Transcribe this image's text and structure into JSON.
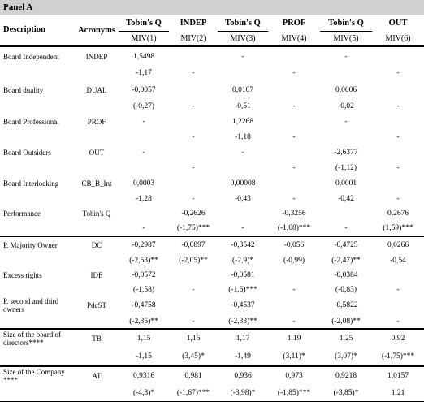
{
  "panel_title": "Panel A",
  "header": {
    "description": "Description",
    "acronyms": "Acronyms",
    "dep_vars": [
      "Tobin's Q",
      "INDEP",
      "Tobin's Q",
      "PROF",
      "Tobin's Q",
      "OUT"
    ],
    "models": [
      "MIV(1)",
      "MIV(2)",
      "MIV(3)",
      "MIV(4)",
      "MIV(5)",
      "MIV(6)"
    ]
  },
  "rows": [
    {
      "label": "Board Independent",
      "acr": "INDEP",
      "coef": [
        "1,5498",
        "",
        "-",
        "",
        "-",
        ""
      ],
      "stat": [
        "-1,17",
        "-",
        "",
        "-",
        "",
        "-"
      ]
    },
    {
      "label": "Board duality",
      "acr": "DUAL",
      "coef": [
        "-0,0057",
        "",
        "0,0107",
        "",
        "0,0006",
        ""
      ],
      "stat": [
        "(-0,27)",
        "-",
        "-0,51",
        "-",
        "-0,02",
        "-"
      ]
    },
    {
      "label": "Board Professional",
      "acr": "PROF",
      "coef": [
        "-",
        "",
        "1,2268",
        "",
        "-",
        ""
      ],
      "stat": [
        "",
        "-",
        "-1,18",
        "-",
        "",
        "-"
      ]
    },
    {
      "label": "Board Outsiders",
      "acr": "OUT",
      "coef": [
        "-",
        "",
        "-",
        "",
        "-2,6377",
        ""
      ],
      "stat": [
        "",
        "-",
        "",
        "-",
        "(-1,12)",
        "-"
      ]
    },
    {
      "label": "Board Interlocking",
      "acr": "CB_B_Int",
      "coef": [
        "0,0003",
        "",
        "0,00008",
        "",
        "0,0001",
        ""
      ],
      "stat": [
        "-1,28",
        "-",
        "-0,43",
        "-",
        "-0,42",
        "-"
      ]
    },
    {
      "label": "Performance",
      "acr": "Tobin's Q",
      "coef": [
        "",
        "-0,2626",
        "",
        "-0,3256",
        "",
        "0,2676"
      ],
      "stat": [
        "-",
        "(-1,75)***",
        "-",
        "(-1,68)***",
        "-",
        "(1,59)***"
      ]
    },
    {
      "label": "P. Majority Owner",
      "acr": "DC",
      "coef": [
        "-0,2987",
        "-0,0897",
        "-0,3542",
        "-0,056",
        "-0,4725",
        "0,0266"
      ],
      "stat": [
        "(-2,53)**",
        "(-2,05)**",
        "(-2,9)*",
        "(-0,99)",
        "(-2,47)**",
        "-0,54"
      ]
    },
    {
      "label": "Excess rights",
      "acr": "IDE",
      "coef": [
        "-0,0572",
        "",
        "-0,0581",
        "",
        "-0,0384",
        ""
      ],
      "stat": [
        "(-1,58)",
        "-",
        "(-1,6)***",
        "-",
        "(-0,83)",
        "-"
      ]
    },
    {
      "label": "P. second and third owners",
      "acr": "PdcST",
      "coef": [
        "-0,4758",
        "",
        "-0,4537",
        "",
        "-0,5822",
        ""
      ],
      "stat": [
        "(-2,35)**",
        "-",
        "(-2,33)**",
        "-",
        "(-2,08)**",
        "-"
      ]
    },
    {
      "label": "Size of the board of directors****",
      "acr": "TB",
      "coef": [
        "1,15",
        "1,16",
        "1,17",
        "1,19",
        "1,25",
        "0,92"
      ],
      "stat": [
        "-1,15",
        "(3,45)*",
        "-1,49",
        "(3,11)*",
        "(3,07)*",
        "(-1,75)***"
      ]
    },
    {
      "label": "Size of the Company ****",
      "acr": "AT",
      "coef": [
        "0,9316",
        "0,981",
        "0,936",
        "0,973",
        "0,9218",
        "1,0157"
      ],
      "stat": [
        "(-4,3)*",
        "(-1,67)***",
        "(-3,98)*",
        "(-1,85)***",
        "(-3,85)*",
        "1,21"
      ]
    }
  ]
}
